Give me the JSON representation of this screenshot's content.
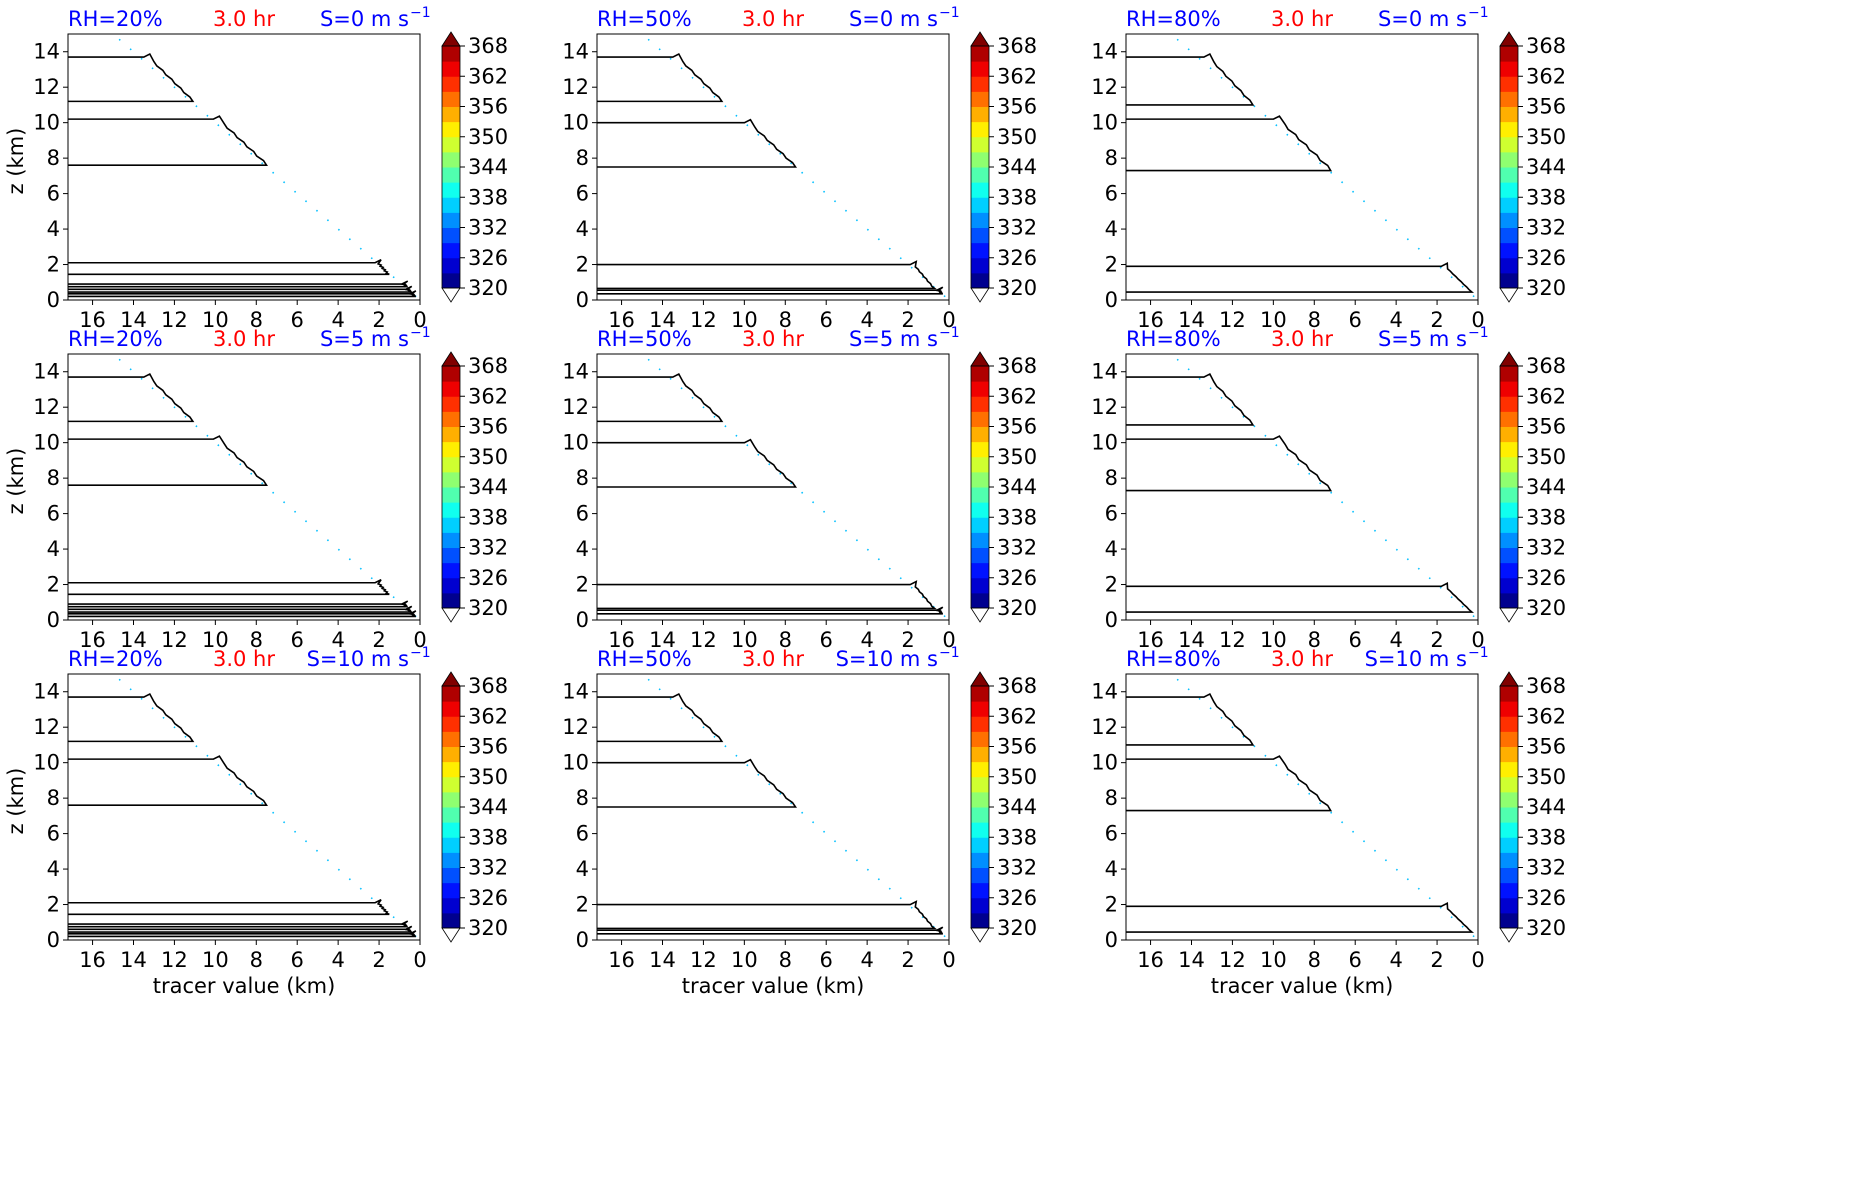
{
  "figure": {
    "xlabel": "tracer value (km)",
    "ylabel": "z (km)",
    "time_label": "3.0 hr",
    "colors": {
      "rh_text": "#0000ff",
      "time_text": "#ff0000",
      "shear_text": "#0000ff",
      "contour": "#000000",
      "axes": "#000000"
    }
  },
  "chart_data": {
    "type": "contour",
    "layout": "3x3 small multiples",
    "x_axis": {
      "label": "tracer value (km)",
      "range": [
        17.2,
        0
      ],
      "inverted": true,
      "ticks": [
        16,
        14,
        12,
        10,
        8,
        6,
        4,
        2,
        0
      ]
    },
    "y_axis": {
      "label": "z (km)",
      "range": [
        0,
        15
      ],
      "ticks": [
        0,
        2,
        4,
        6,
        8,
        10,
        12,
        14
      ]
    },
    "colorbar": {
      "colormap": "jet",
      "range": [
        320,
        368
      ],
      "ticks": [
        368,
        362,
        356,
        350,
        344,
        338,
        332,
        326,
        320
      ],
      "levels": 16,
      "extend": "both",
      "colors": [
        "#00008f",
        "#0000d0",
        "#0012ff",
        "#0050ff",
        "#008fff",
        "#00cfff",
        "#10ffef",
        "#50ffaf",
        "#8fff70",
        "#cfff30",
        "#ffef00",
        "#ffaf00",
        "#ff7000",
        "#ff3000",
        "#ef0000",
        "#af0000"
      ],
      "under_color": "#ffffff",
      "over_color": "#800000"
    },
    "rows_shear": [
      "S=0 m s",
      "S=5 m s",
      "S=10 m s"
    ],
    "shear_unit_superscript": "−1",
    "cols_rh": [
      "RH=20%",
      "RH=50%",
      "RH=80%"
    ],
    "contours": {
      "RH=20%": [
        {
          "z_bottom": 11.2,
          "z_top": 13.7,
          "x_right": 11.1,
          "x_peak": 13.3
        },
        {
          "z_bottom": 7.6,
          "z_top": 10.2,
          "x_right": 7.5,
          "x_peak": 9.9
        },
        {
          "z_bottom": 1.45,
          "z_top": 2.1,
          "x_right": 1.5,
          "x_peak": 2.0
        },
        {
          "z_bottom": 0.75,
          "z_top": 0.9,
          "x_right": 0.6,
          "x_peak": 0.7
        },
        {
          "z_bottom": 0.45,
          "z_top": 0.6,
          "x_right": 0.4,
          "x_peak": 0.5
        },
        {
          "z_bottom": 0.2,
          "z_top": 0.35,
          "x_right": 0.2,
          "x_peak": 0.3
        }
      ],
      "RH=50%": [
        {
          "z_bottom": 11.2,
          "z_top": 13.7,
          "x_right": 11.1,
          "x_peak": 13.3
        },
        {
          "z_bottom": 7.5,
          "z_top": 10.0,
          "x_right": 7.5,
          "x_peak": 9.8
        },
        {
          "z_bottom": 0.65,
          "z_top": 2.0,
          "x_right": 0.7,
          "x_peak": 1.7
        },
        {
          "z_bottom": 0.35,
          "z_top": 0.55,
          "x_right": 0.3,
          "x_peak": 0.4
        }
      ],
      "RH=80%": [
        {
          "z_bottom": 11.0,
          "z_top": 13.7,
          "x_right": 11.0,
          "x_peak": 13.2
        },
        {
          "z_bottom": 7.3,
          "z_top": 10.2,
          "x_right": 7.2,
          "x_peak": 9.8
        },
        {
          "z_bottom": 0.45,
          "z_top": 1.9,
          "x_right": 0.3,
          "x_peak": 1.6
        }
      ]
    },
    "diagonal_tracer": {
      "from": [
        14.7,
        14.7
      ],
      "to": [
        0,
        0
      ],
      "note_color": "#00bfff"
    }
  }
}
